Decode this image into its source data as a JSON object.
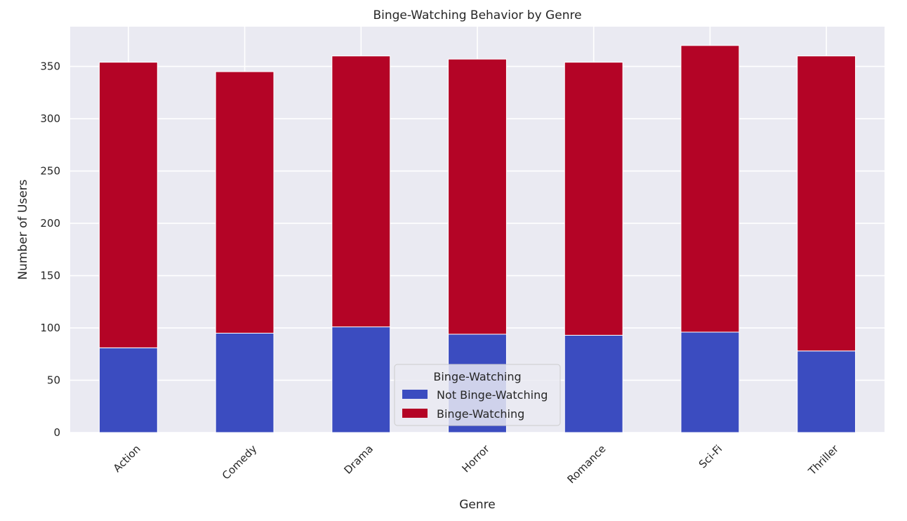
{
  "chart_data": {
    "type": "bar",
    "stacked": true,
    "title": "Binge-Watching Behavior by Genre",
    "xlabel": "Genre",
    "ylabel": "Number of Users",
    "categories": [
      "Action",
      "Comedy",
      "Drama",
      "Horror",
      "Romance",
      "Sci-Fi",
      "Thriller"
    ],
    "series": [
      {
        "name": "Not Binge-Watching",
        "color": "#3b4cc0",
        "values": [
          81,
          95,
          101,
          94,
          93,
          96,
          78
        ]
      },
      {
        "name": "Binge-Watching",
        "color": "#b40426",
        "values": [
          273,
          250,
          259,
          263,
          261,
          274,
          282
        ]
      }
    ],
    "ylim": [
      0,
      388
    ],
    "yticks": [
      0,
      50,
      100,
      150,
      200,
      250,
      300,
      350
    ],
    "legend": {
      "title": "Binge-Watching",
      "placement": "lower-center"
    },
    "grid": true,
    "background": "#eaeaf2"
  }
}
